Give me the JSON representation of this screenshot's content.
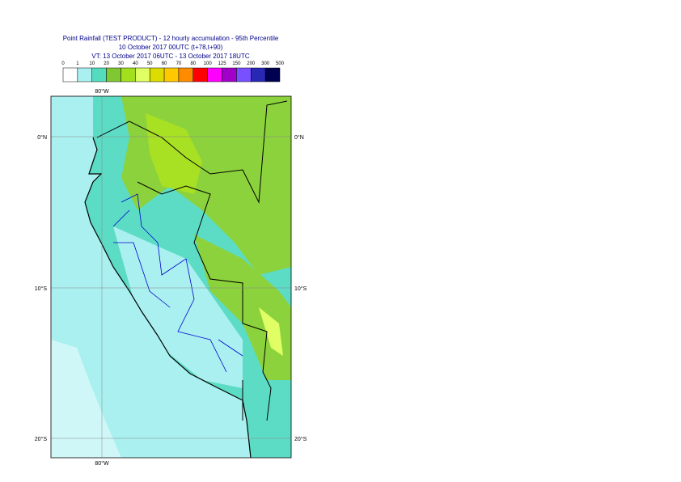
{
  "header": {
    "title": "Point Rainfall (TEST PRODUCT) - 12 hourly accumulation - 95th Percentile",
    "base_time": "10 October 2017 00UTC (t+78,t+90)",
    "valid_time": "VT: 13 October 2017 06UTC - 13 October 2017 18UTC"
  },
  "legend": {
    "labels": [
      "0",
      "1",
      "10",
      "20",
      "30",
      "40",
      "50",
      "60",
      "70",
      "80",
      "100",
      "125",
      "150",
      "200",
      "300",
      "500"
    ],
    "colors": [
      "#ffffff",
      "#aaf0f0",
      "#55dcbe",
      "#80c832",
      "#a2e01e",
      "#e0ff64",
      "#dcdc00",
      "#ffc800",
      "#ff8c00",
      "#ff0000",
      "#ff00ff",
      "#a000c8",
      "#7850ff",
      "#2828b4",
      "#000050"
    ]
  },
  "map": {
    "lon_label": "80°W",
    "lat_labels": [
      "0°N",
      "10°S",
      "20°S"
    ]
  }
}
